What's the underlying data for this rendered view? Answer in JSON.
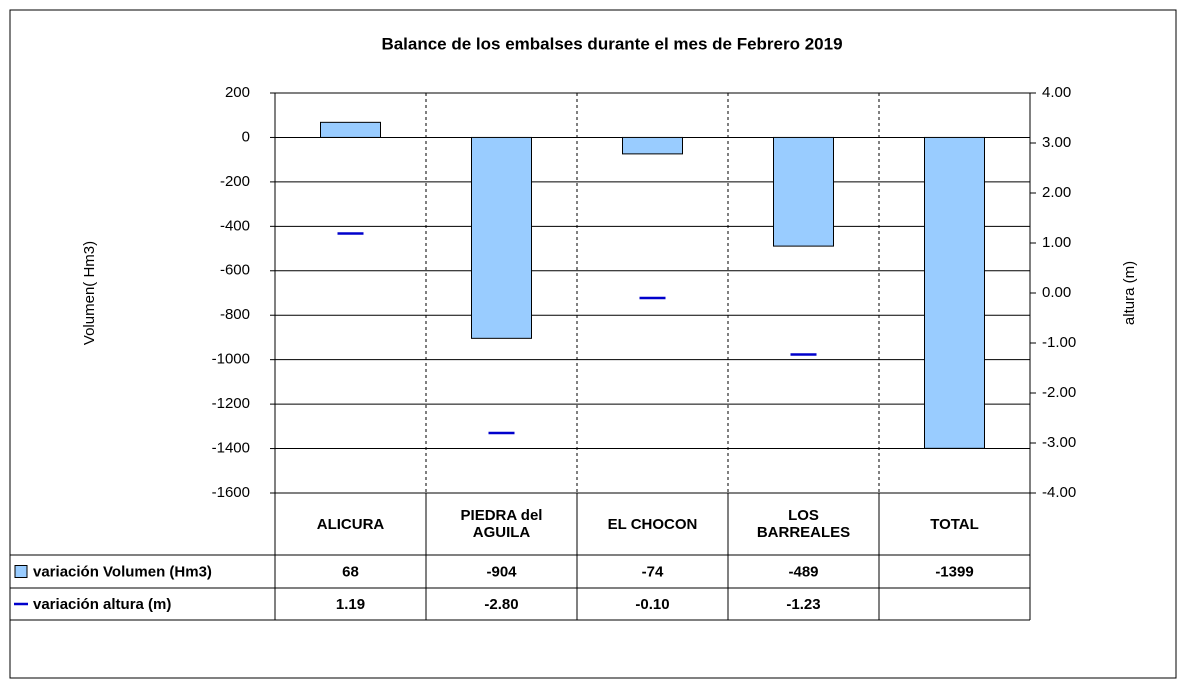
{
  "chart_data": {
    "type": "bar-line",
    "title": "Balance de los embalses durante el mes de Febrero 2019",
    "y_label": "Volumen( Hm3)",
    "y2_label": "altura (m)",
    "categories": [
      "ALICURA",
      "PIEDRA del AGUILA",
      "EL CHOCON",
      "LOS BARREALES",
      "TOTAL"
    ],
    "series": [
      {
        "name": "variación Volumen (Hm3)",
        "color": "#99ccff",
        "type": "bar",
        "values": [
          68,
          -904,
          -74,
          -489,
          -1399
        ]
      },
      {
        "name": "variación altura (m)",
        "color": "#0000cc",
        "type": "dash",
        "axis": "y2",
        "values": [
          1.19,
          -2.8,
          -0.1,
          -1.23,
          null
        ],
        "value_labels": [
          "1.19",
          "-2.80",
          "-0.10",
          "-1.23",
          null
        ]
      }
    ],
    "ylim": [
      -1600,
      200
    ],
    "yticks": [
      -1600,
      -1400,
      -1200,
      -1000,
      -800,
      -600,
      -400,
      -200,
      0,
      200
    ],
    "y2lim": [
      -4,
      4
    ],
    "y2ticks": [
      {
        "value": -4,
        "label": "-4.00"
      },
      {
        "value": -3,
        "label": "-3.00"
      },
      {
        "value": -2,
        "label": "-2.00"
      },
      {
        "value": -1,
        "label": "-1.00"
      },
      {
        "value": 0,
        "label": "0.00"
      },
      {
        "value": 1,
        "label": "1.00"
      },
      {
        "value": 2,
        "label": "2.00"
      },
      {
        "value": 3,
        "label": "3.00"
      },
      {
        "value": 4,
        "label": "4.00"
      }
    ],
    "grid": true
  }
}
